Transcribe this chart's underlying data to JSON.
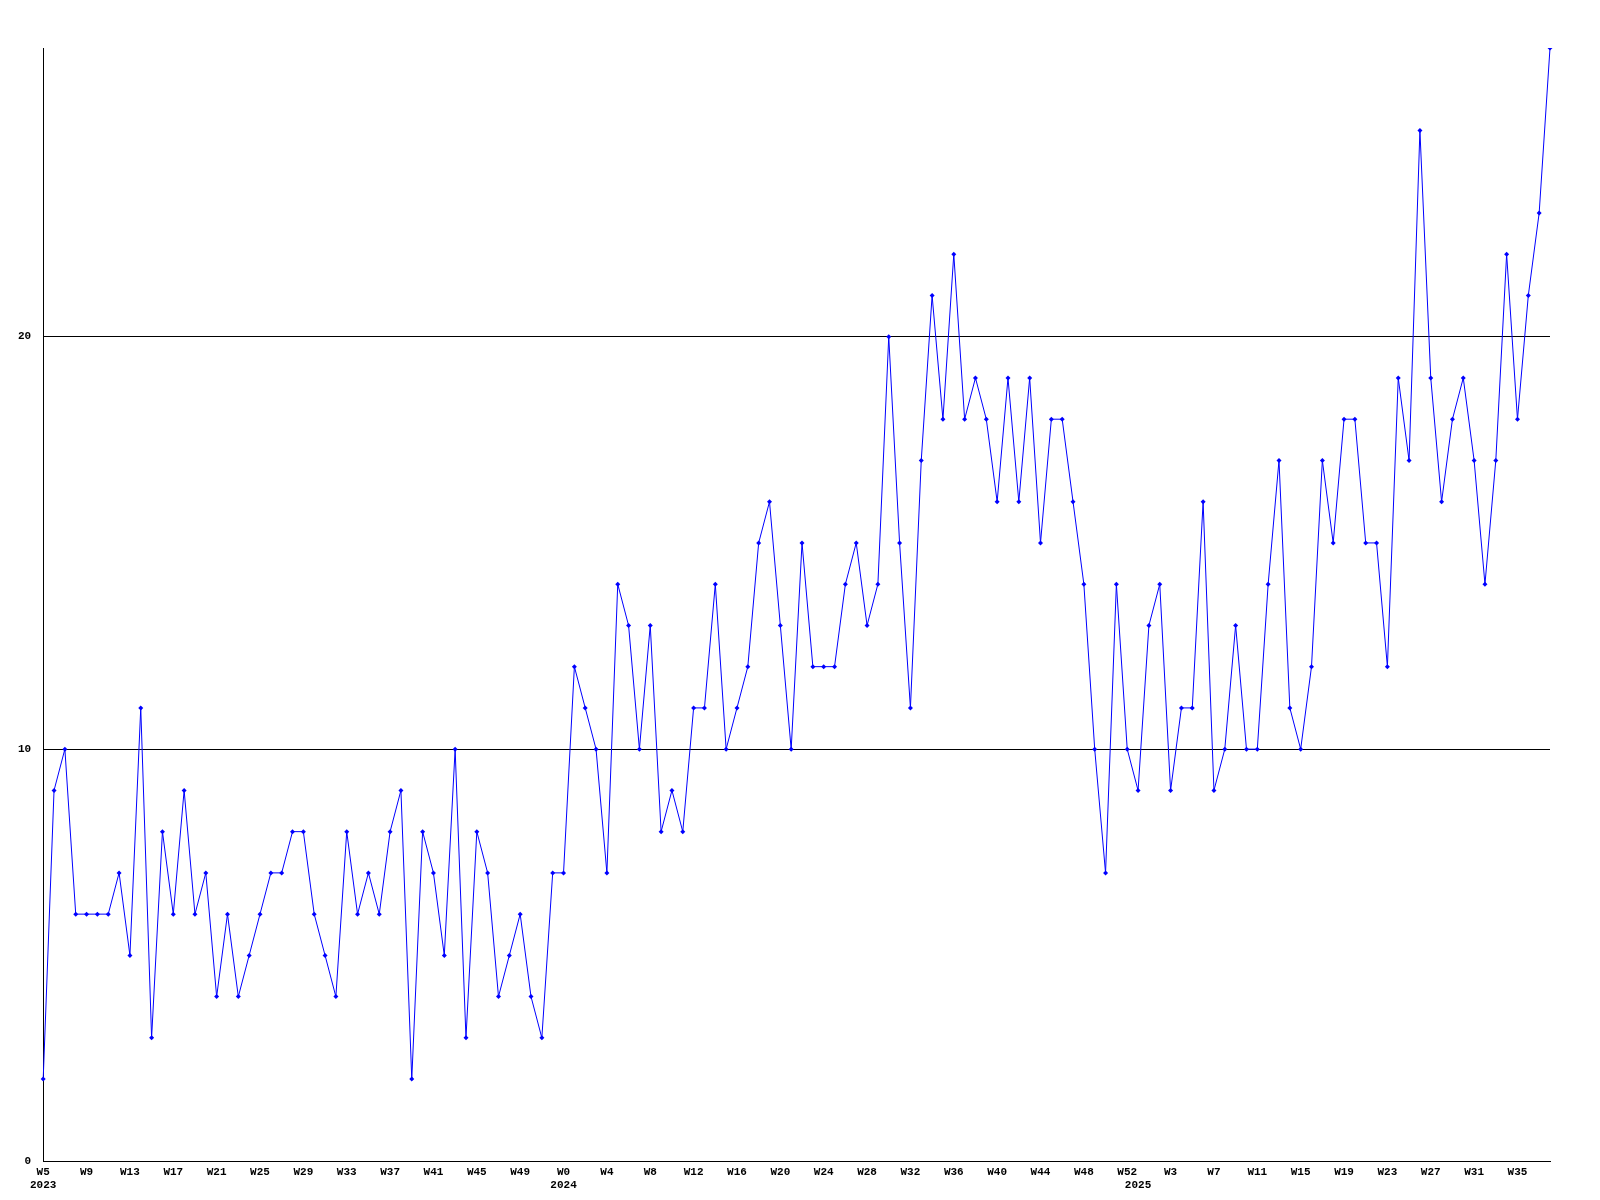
{
  "chart_data": {
    "type": "line",
    "categories": [
      "W5\n2023",
      null,
      null,
      null,
      "W9",
      null,
      null,
      null,
      "W13",
      null,
      null,
      null,
      "W17",
      null,
      null,
      null,
      "W21",
      null,
      null,
      null,
      "W25",
      null,
      null,
      null,
      "W29",
      null,
      null,
      null,
      "W33",
      null,
      null,
      null,
      "W37",
      null,
      null,
      null,
      "W41",
      null,
      null,
      null,
      "W45",
      null,
      null,
      null,
      "W49",
      null,
      null,
      null,
      "W0\n2024",
      null,
      null,
      null,
      "W4",
      null,
      null,
      null,
      "W8",
      null,
      null,
      null,
      "W12",
      null,
      null,
      null,
      "W16",
      null,
      null,
      null,
      "W20",
      null,
      null,
      null,
      "W24",
      null,
      null,
      null,
      "W28",
      null,
      null,
      null,
      "W32",
      null,
      null,
      null,
      "W36",
      null,
      null,
      null,
      "W40",
      null,
      null,
      null,
      "W44",
      null,
      null,
      null,
      "W48",
      null,
      null,
      null,
      "W52",
      "\n2025",
      null,
      null,
      "W3",
      null,
      null,
      null,
      "W7",
      null,
      null,
      null,
      "W11",
      null,
      null,
      null,
      "W15",
      null,
      null,
      null,
      "W19",
      null,
      null,
      null,
      "W23",
      null,
      null,
      null,
      "W27",
      null,
      null,
      null,
      "W31",
      null,
      null,
      null,
      "W35",
      null,
      null,
      null
    ],
    "values": [
      2,
      9,
      10,
      6,
      6,
      6,
      6,
      7,
      5,
      11,
      3,
      8,
      6,
      9,
      6,
      7,
      4,
      6,
      4,
      5,
      6,
      7,
      7,
      8,
      8,
      6,
      5,
      4,
      8,
      6,
      7,
      6,
      8,
      9,
      2,
      8,
      7,
      5,
      10,
      3,
      8,
      7,
      4,
      5,
      6,
      4,
      3,
      7,
      7,
      12,
      11,
      10,
      7,
      14,
      13,
      10,
      13,
      8,
      9,
      8,
      11,
      11,
      14,
      10,
      11,
      12,
      15,
      16,
      13,
      10,
      15,
      12,
      12,
      12,
      14,
      15,
      13,
      14,
      20,
      15,
      11,
      17,
      21,
      18,
      22,
      18,
      19,
      18,
      16,
      19,
      16,
      19,
      15,
      18,
      18,
      16,
      14,
      10,
      7,
      14,
      10,
      9,
      13,
      14,
      9,
      11,
      11,
      16,
      9,
      10,
      13,
      10,
      10,
      14,
      17,
      11,
      10,
      12,
      17,
      15,
      18,
      18,
      15,
      15,
      12,
      19,
      17,
      25,
      19,
      16,
      18,
      19,
      17,
      14,
      17,
      22,
      18,
      21,
      23,
      27
    ],
    "color": "#0000ff",
    "ylim": [
      0,
      27
    ],
    "yticks": [
      0,
      10,
      20
    ],
    "grid": "y",
    "marker": "diamond",
    "legend": false
  }
}
